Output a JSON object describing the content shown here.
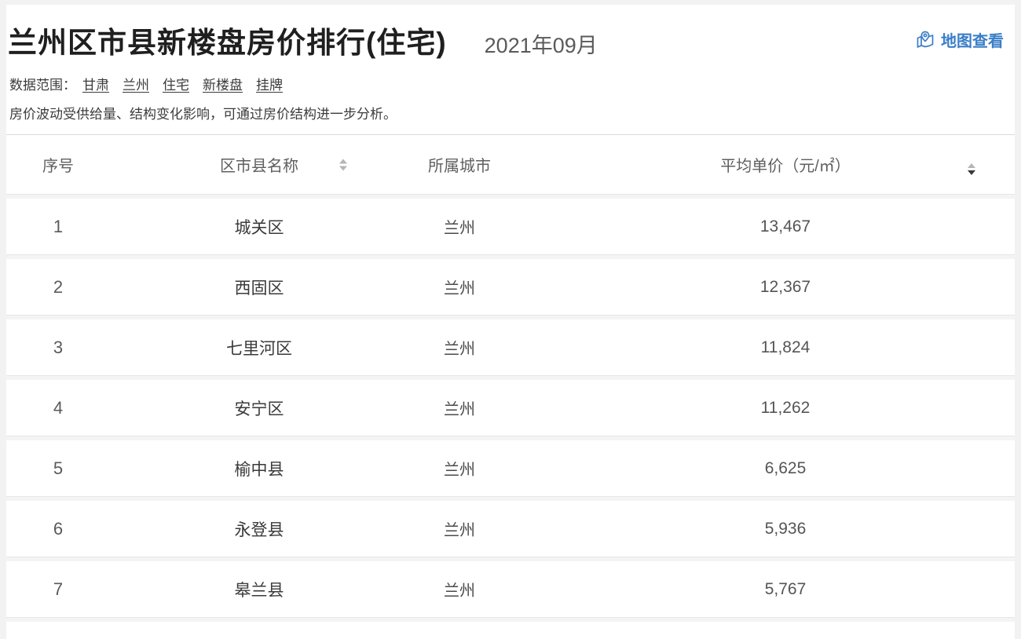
{
  "page": {
    "title": "兰州区市县新楼盘房价排行(住宅)",
    "period": "2021年09月",
    "map_link": {
      "label": "地图查看",
      "icon": "map-pin-icon"
    },
    "scope": {
      "label": "数据范围：",
      "filters": [
        "甘肃",
        "兰州",
        "住宅",
        "新楼盘",
        "挂牌"
      ]
    },
    "note": "房价波动受供给量、结构变化影响，可通过房价结构进一步分析。"
  },
  "table": {
    "columns": {
      "rank": "序号",
      "district": "区市县名称",
      "city": "所属城市",
      "price": "平均单价（元/㎡）"
    },
    "sort": {
      "column": "平均单价（元/㎡）",
      "direction": "desc"
    },
    "rows": [
      {
        "rank": "1",
        "district": "城关区",
        "city": "兰州",
        "price": "13,467"
      },
      {
        "rank": "2",
        "district": "西固区",
        "city": "兰州",
        "price": "12,367"
      },
      {
        "rank": "3",
        "district": "七里河区",
        "city": "兰州",
        "price": "11,824"
      },
      {
        "rank": "4",
        "district": "安宁区",
        "city": "兰州",
        "price": "11,262"
      },
      {
        "rank": "5",
        "district": "榆中县",
        "city": "兰州",
        "price": "6,625"
      },
      {
        "rank": "6",
        "district": "永登县",
        "city": "兰州",
        "price": "5,936"
      },
      {
        "rank": "7",
        "district": "皋兰县",
        "city": "兰州",
        "price": "5,767"
      }
    ]
  },
  "colors": {
    "accent_blue": "#3a7ec8",
    "title_text": "#1f1f1f",
    "row_separator": "#e6e6e6"
  }
}
